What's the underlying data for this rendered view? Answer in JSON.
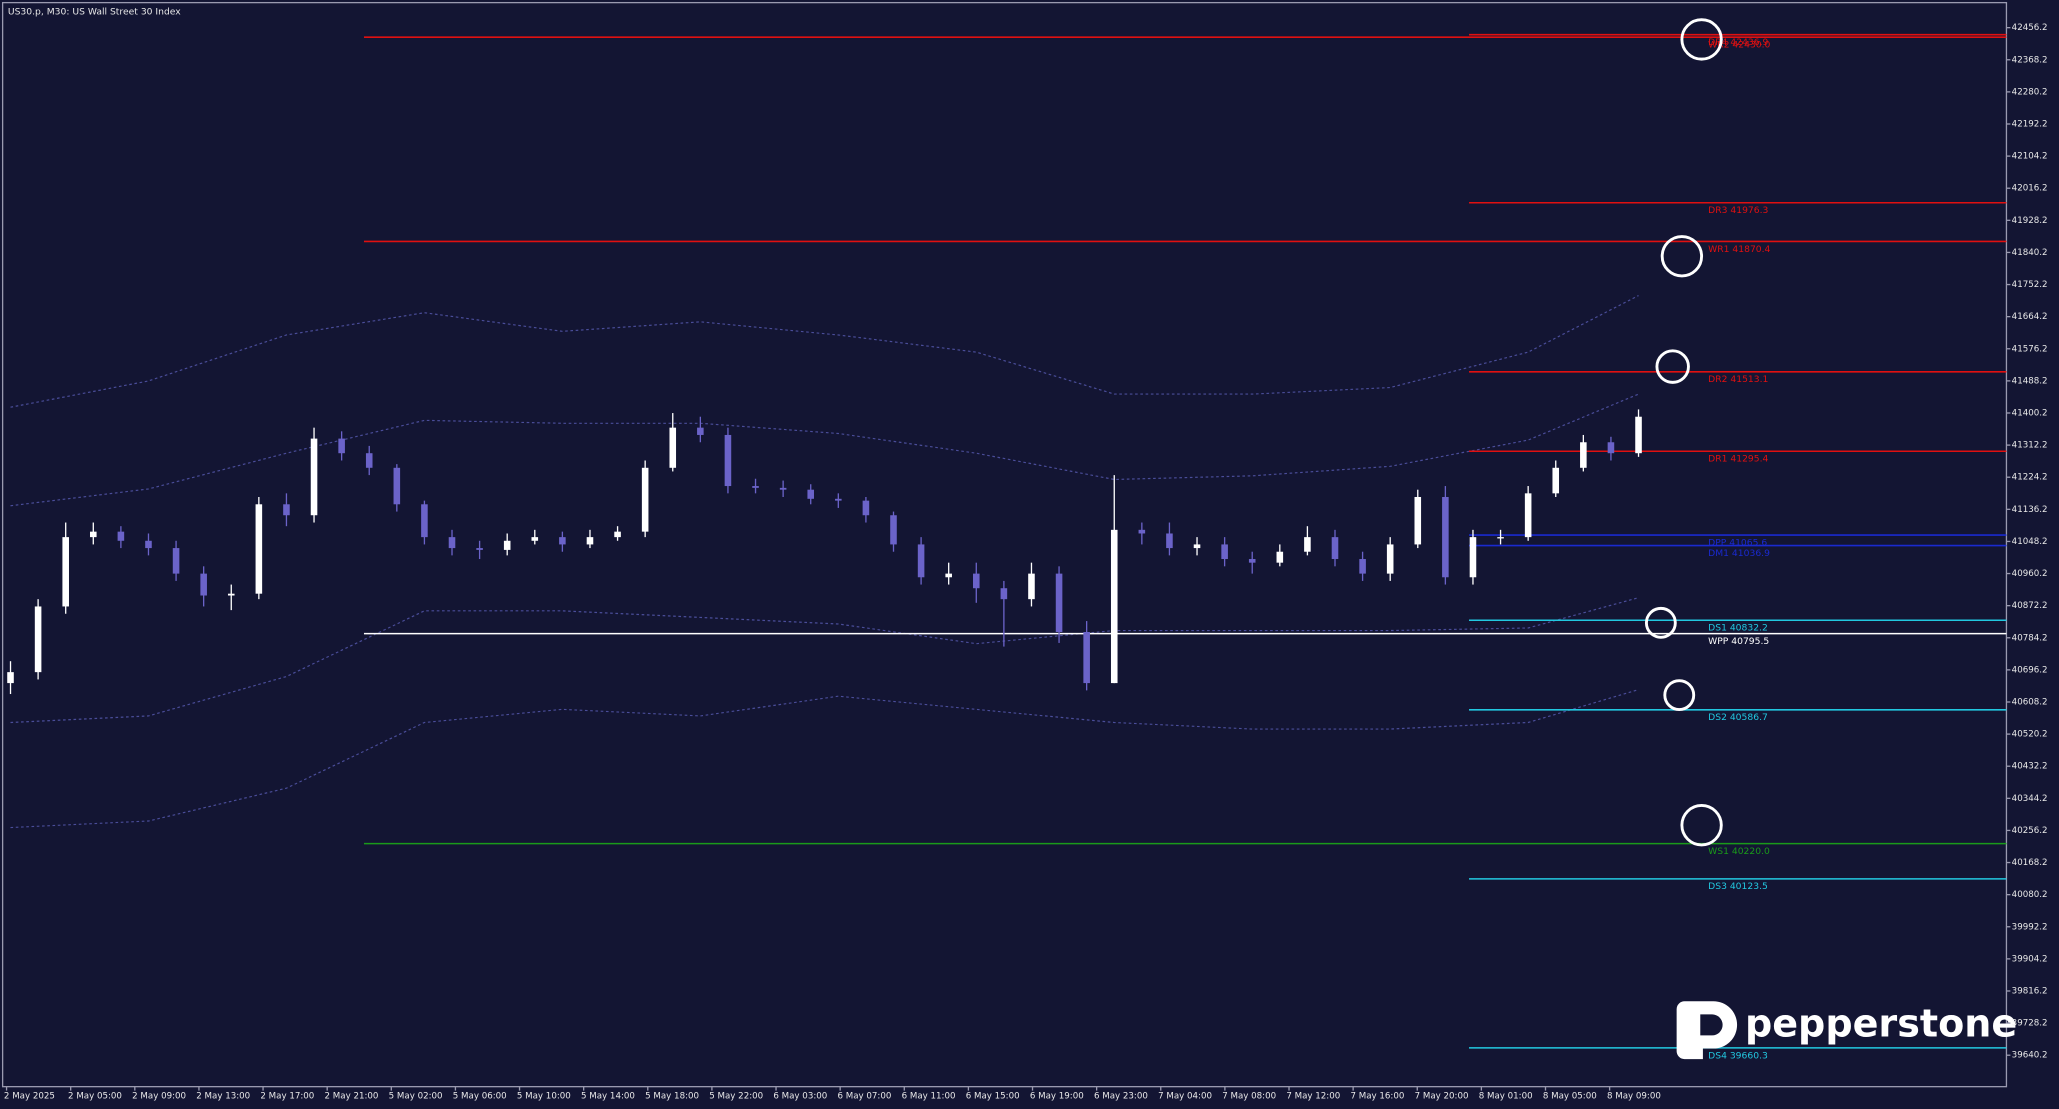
{
  "chart_data": {
    "type": "candlestick",
    "title": "US30.p, M30:  US Wall Street 30 Index",
    "ylim": [
      39554,
      42532
    ],
    "yticks": [
      42456.2,
      42368.2,
      42280.2,
      42192.2,
      42104.2,
      42016.2,
      41928.2,
      41840.2,
      41752.2,
      41664.2,
      41576.2,
      41488.2,
      41400.2,
      41312.2,
      41224.2,
      41136.2,
      41048.2,
      40960.2,
      40872.2,
      40784.2,
      40696.2,
      40608.2,
      40520.2,
      40432.2,
      40344.2,
      40256.2,
      40168.2,
      40080.2,
      39992.2,
      39904.2,
      39816.2,
      39728.2,
      39640.2
    ],
    "x_labels": [
      "2 May 2025",
      "2 May 05:00",
      "2 May 09:00",
      "2 May 13:00",
      "2 May 17:00",
      "2 May 21:00",
      "5 May 02:00",
      "5 May 06:00",
      "5 May 10:00",
      "5 May 14:00",
      "5 May 18:00",
      "5 May 22:00",
      "6 May 03:00",
      "6 May 07:00",
      "6 May 11:00",
      "6 May 15:00",
      "6 May 19:00",
      "6 May 23:00",
      "7 May 04:00",
      "7 May 08:00",
      "7 May 12:00",
      "7 May 16:00",
      "7 May 20:00",
      "8 May 01:00",
      "8 May 05:00",
      "8 May 09:00"
    ],
    "up_color": "#ffffff",
    "down_color": "#6b63c9",
    "open": [
      40660,
      40690,
      40870,
      41060,
      41075,
      41050,
      41030,
      40960,
      40900,
      40905,
      41150,
      41120,
      41330,
      41290,
      41250,
      41150,
      41060,
      41030,
      41025,
      41050,
      41060,
      41040,
      41060,
      41075,
      41250,
      41360,
      41340,
      41200,
      41195,
      41190,
      41165,
      41160,
      41120,
      41040,
      40950,
      40960,
      40920,
      40890,
      40960,
      40800,
      40660,
      41080,
      41070,
      41030,
      41040,
      41000,
      40990,
      41020,
      41060,
      41000,
      40960,
      41040,
      41170,
      40950,
      41060,
      41060,
      41180,
      41250,
      41320,
      41290
    ],
    "high": [
      40720,
      40890,
      41100,
      41100,
      41090,
      41070,
      41050,
      40980,
      40930,
      41170,
      41180,
      41360,
      41350,
      41310,
      41260,
      41160,
      41080,
      41050,
      41070,
      41080,
      41075,
      41080,
      41090,
      41270,
      41400,
      41390,
      41360,
      41220,
      41215,
      41205,
      41180,
      41170,
      41130,
      41060,
      40990,
      40990,
      40940,
      40990,
      40980,
      40830,
      41230,
      41100,
      41100,
      41060,
      41060,
      41020,
      41040,
      41090,
      41080,
      41020,
      41060,
      41190,
      41200,
      41080,
      41080,
      41200,
      41270,
      41340,
      41335,
      41410
    ],
    "low": [
      40630,
      40670,
      40850,
      41040,
      41030,
      41010,
      40940,
      40870,
      40860,
      40890,
      41090,
      41100,
      41270,
      41230,
      41130,
      41040,
      41010,
      41000,
      41010,
      41040,
      41020,
      41030,
      41050,
      41060,
      41240,
      41320,
      41180,
      41180,
      41170,
      41150,
      41140,
      41100,
      41020,
      40930,
      40930,
      40880,
      40760,
      40870,
      40770,
      40640,
      40660,
      41040,
      41010,
      41010,
      40980,
      40960,
      40980,
      41010,
      40980,
      40940,
      40940,
      41030,
      40930,
      40930,
      41040,
      41050,
      41170,
      41240,
      41270,
      41280
    ],
    "close": [
      40690,
      40870,
      41060,
      41075,
      41050,
      41030,
      40960,
      40900,
      40905,
      41150,
      41120,
      41330,
      41290,
      41250,
      41150,
      41060,
      41030,
      41025,
      41050,
      41060,
      41040,
      41060,
      41075,
      41250,
      41360,
      41340,
      41200,
      41195,
      41190,
      41165,
      41160,
      41120,
      41040,
      40950,
      40960,
      40920,
      40890,
      40960,
      40800,
      40660,
      41080,
      41070,
      41030,
      41040,
      41000,
      40990,
      41020,
      41060,
      41000,
      40960,
      41040,
      41170,
      40950,
      41060,
      41060,
      41180,
      41250,
      41320,
      41290,
      41390
    ],
    "bands_x": [
      0,
      5,
      10,
      15,
      20,
      25,
      30,
      35,
      40,
      45,
      50,
      55,
      59
    ],
    "band_color": "#4a4d99",
    "bands": [
      {
        "values": [
          41416,
          41488,
          41614,
          41675,
          41624,
          41650,
          41614,
          41567,
          41452,
          41452,
          41470,
          41567,
          41722
        ]
      },
      {
        "values": [
          41146,
          41192,
          41290,
          41380,
          41372,
          41372,
          41344,
          41290,
          41218,
          41228,
          41254,
          41326,
          41452
        ]
      },
      {
        "values": [
          40552,
          40570,
          40678,
          40858,
          40858,
          40840,
          40822,
          40768,
          40804,
          40804,
          40804,
          40811,
          40894
        ]
      },
      {
        "values": [
          40264,
          40282,
          40372,
          40552,
          40588,
          40570,
          40624,
          40588,
          40552,
          40534,
          40534,
          40552,
          40642
        ]
      }
    ],
    "levels": [
      {
        "label": "WR2 42430.0",
        "value": 42430.0,
        "color": "#e01010",
        "span": "week"
      },
      {
        "label": "DR4 42436.9",
        "value": 42436.9,
        "color": "#e01010",
        "span": "day"
      },
      {
        "label": "DR3 41976.3",
        "value": 41976.3,
        "color": "#e01010",
        "span": "day"
      },
      {
        "label": "WR1 41870.4",
        "value": 41870.4,
        "color": "#e01010",
        "span": "week"
      },
      {
        "label": "DR2 41513.1",
        "value": 41513.1,
        "color": "#e01010",
        "span": "day"
      },
      {
        "label": "DR1 41295.4",
        "value": 41295.4,
        "color": "#e01010",
        "span": "day"
      },
      {
        "label": "DPP 41065.6",
        "value": 41065.6,
        "color": "#1a2ad0",
        "span": "day"
      },
      {
        "label": "DM1 41036.9",
        "value": 41036.9,
        "color": "#1a2ad0",
        "span": "day"
      },
      {
        "label": "DS1 40832.2",
        "value": 40832.2,
        "color": "#22c8e0",
        "span": "day"
      },
      {
        "label": "WPP 40795.5",
        "value": 40795.5,
        "color": "#ffffff",
        "span": "week"
      },
      {
        "label": "DS2 40586.7",
        "value": 40586.7,
        "color": "#22c8e0",
        "span": "day"
      },
      {
        "label": "WS1 40220.0",
        "value": 40220.0,
        "color": "#1a9a1a",
        "span": "week"
      },
      {
        "label": "DS3 40123.5",
        "value": 40123.5,
        "color": "#22c8e0",
        "span": "day"
      },
      {
        "label": "DS4 39660.3",
        "value": 39660.3,
        "color": "#22c8e0",
        "span": "day"
      }
    ],
    "watermark": "pepperstone"
  }
}
